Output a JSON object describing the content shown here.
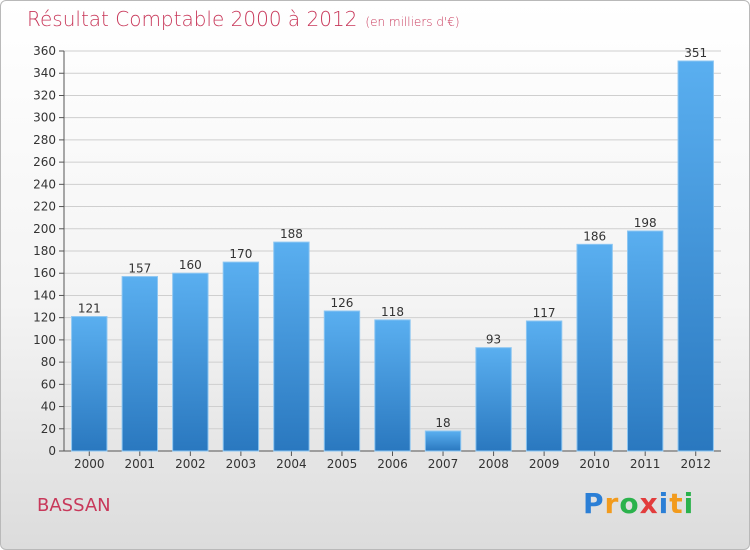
{
  "title": "Résultat Comptable 2000 à 2012",
  "subtitle": "(en milliers d'€)",
  "town": "BASSAN",
  "logo": {
    "letters": [
      "P",
      "r",
      "o",
      "x",
      "i",
      "t",
      "i"
    ],
    "colors": [
      "#2b7fd6",
      "#f29b1d",
      "#2bb24c",
      "#e23c3c",
      "#2b7fd6",
      "#f29b1d",
      "#2bb24c"
    ]
  },
  "colors": {
    "title": "#c8385a",
    "bar_top": "#5aaff0",
    "bar_bottom": "#2a78bf",
    "grid": "#cfcfcf"
  },
  "chart_data": {
    "type": "bar",
    "categories": [
      "2000",
      "2001",
      "2002",
      "2003",
      "2004",
      "2005",
      "2006",
      "2007",
      "2008",
      "2009",
      "2010",
      "2011",
      "2012"
    ],
    "values": [
      121,
      157,
      160,
      170,
      188,
      126,
      118,
      18,
      93,
      117,
      186,
      198,
      351
    ],
    "ylim": [
      0,
      360
    ],
    "yticks": [
      0,
      20,
      40,
      60,
      80,
      100,
      120,
      140,
      160,
      180,
      200,
      220,
      240,
      260,
      280,
      300,
      320,
      340,
      360
    ],
    "grid": true,
    "data_labels": true
  }
}
